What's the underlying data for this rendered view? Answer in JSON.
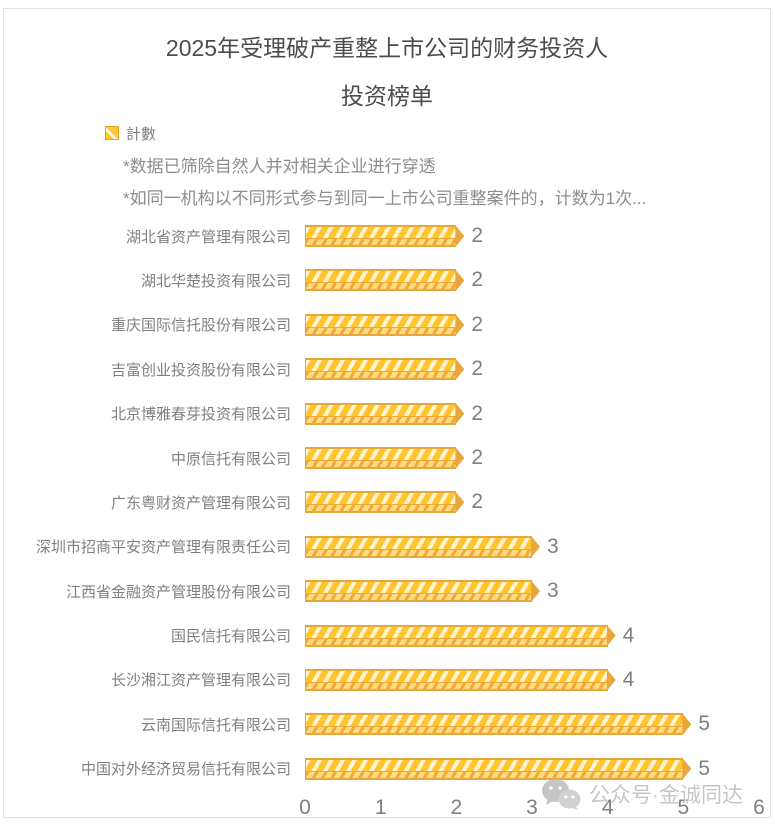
{
  "title": {
    "line1": "2025年受理破产重整上市公司的财务投资人",
    "line2": "投资榜单"
  },
  "legend": {
    "label": "計數"
  },
  "notes": {
    "note1": "*数据已筛除自然人并对相关企业进行穿透",
    "note2": "*如同一机构以不同形式参与到同一上市公司重整案件的，计数为1次..."
  },
  "chart_data": {
    "type": "bar",
    "orientation": "horizontal",
    "title": "2025年受理破产重整上市公司的财务投资人投资榜单",
    "legend_entries": [
      "計數"
    ],
    "categories": [
      "湖北省资产管理有限公司",
      "湖北华楚投资有限公司",
      "重庆国际信托股份有限公司",
      "吉富创业投资股份有限公司",
      "北京博雅春芽投资有限公司",
      "中原信托有限公司",
      "广东粤财资产管理有限公司",
      "深圳市招商平安资产管理有限责任公司",
      "江西省金融资产管理股份有限公司",
      "国民信托有限公司",
      "长沙湘江资产管理有限公司",
      "云南国际信托有限公司",
      "中国对外经济贸易信托有限公司"
    ],
    "values": [
      2,
      2,
      2,
      2,
      2,
      2,
      2,
      3,
      3,
      4,
      4,
      5,
      5
    ],
    "xlabel": "",
    "ylabel": "",
    "xlim": [
      0,
      6
    ],
    "x_ticks": [
      0,
      1,
      2,
      3,
      4,
      5,
      6
    ],
    "grid": false,
    "legend_position": "top-left",
    "colors": {
      "bar_fill": "#FFC52F",
      "bar_stripe_light": "#FFF4CF",
      "bar_bottom_light": "#FFDC7E",
      "bar_bottom_stripe": "#F0A93C",
      "bar_border": "#E9A63B",
      "text_gray": "#7F7F7F",
      "title_gray": "#4C4C4C",
      "watermark_gray": "#C6C6C6"
    }
  },
  "watermark": {
    "icon": "wechat-icon",
    "text": "公众号·金诚同达"
  }
}
